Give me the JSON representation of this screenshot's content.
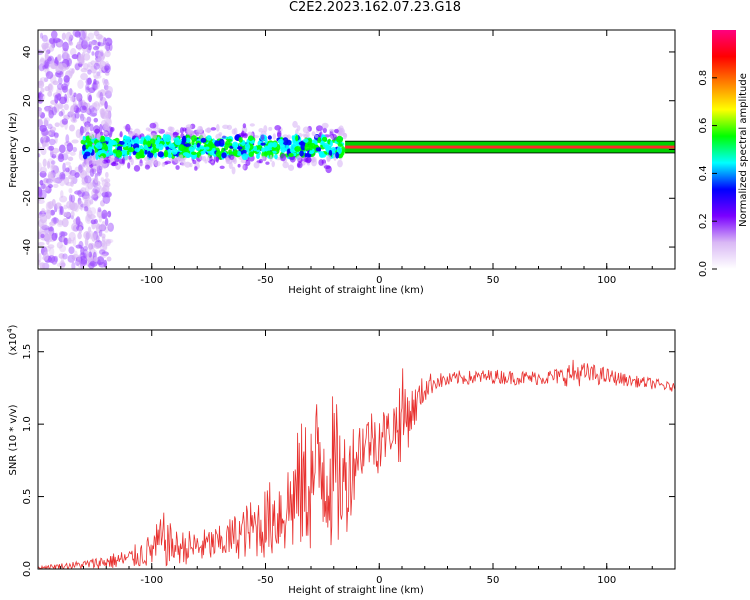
{
  "title": "C2E2.2023.162.07.23.G18",
  "chart_data": [
    {
      "type": "heatmap",
      "xlabel": "Height of straight line (km)",
      "ylabel": "Frequency (Hz)",
      "xlim": [
        -150,
        130
      ],
      "ylim": [
        -49,
        49
      ],
      "x_ticks": [
        -100,
        -50,
        0,
        50,
        100
      ],
      "y_ticks": [
        -40,
        -20,
        0,
        20,
        40
      ],
      "colorbar": {
        "label": "Normalized spectral amplitude",
        "range": [
          0.0,
          1.0
        ],
        "ticks": [
          "0.0",
          "0.2",
          "0.4",
          "0.6",
          "0.8"
        ],
        "colormap": [
          "#ffffff",
          "#d9b8f5",
          "#7a00ff",
          "#0000ff",
          "#00ffff",
          "#00ff00",
          "#ffff00",
          "#ff8000",
          "#ff0000",
          "#ff007f"
        ]
      },
      "band_segments": [
        {
          "x": [
            -150,
            -130
          ],
          "freq_spread": 48,
          "amplitude": 0.15,
          "note": "diffuse purple noise"
        },
        {
          "x": [
            -130,
            -15
          ],
          "freq_center": 1,
          "freq_spread": 10,
          "amplitude": 0.45
        },
        {
          "x": [
            -15,
            130
          ],
          "freq_center": 1,
          "freq_spread": 2,
          "amplitude": 0.85
        }
      ]
    },
    {
      "type": "line",
      "xlabel": "Height of straight line (km)",
      "ylabel": "SNR (10 * v/v)",
      "y_multiplier": "(x10",
      "y_multiplier_exp": "4",
      "xlim": [
        -150,
        130
      ],
      "ylim": [
        0,
        1.65
      ],
      "x_ticks": [
        -100,
        -50,
        0,
        50,
        100
      ],
      "y_ticks": [
        "0.0",
        "0.5",
        "1.0",
        "1.5"
      ],
      "series": [
        {
          "color": "#e8312f",
          "x": [
            -150,
            -140,
            -130,
            -120,
            -110,
            -100,
            -95,
            -90,
            -80,
            -70,
            -60,
            -50,
            -45,
            -40,
            -35,
            -30,
            -25,
            -20,
            -15,
            -10,
            -5,
            0,
            5,
            10,
            15,
            20,
            25,
            30,
            35,
            40,
            50,
            60,
            70,
            80,
            85,
            90,
            100,
            110,
            120,
            130
          ],
          "y": [
            0.01,
            0.02,
            0.03,
            0.05,
            0.07,
            0.13,
            0.2,
            0.15,
            0.15,
            0.18,
            0.25,
            0.32,
            0.38,
            0.43,
            0.55,
            0.6,
            0.75,
            0.65,
            0.58,
            0.8,
            0.9,
            0.9,
            0.95,
            1.05,
            1.1,
            1.25,
            1.3,
            1.3,
            1.32,
            1.32,
            1.33,
            1.32,
            1.32,
            1.33,
            1.35,
            1.35,
            1.33,
            1.3,
            1.28,
            1.25
          ],
          "noise_amplitude": [
            0.01,
            0.02,
            0.03,
            0.05,
            0.07,
            0.12,
            0.2,
            0.12,
            0.12,
            0.12,
            0.18,
            0.25,
            0.3,
            0.35,
            0.45,
            0.5,
            0.6,
            0.55,
            0.4,
            0.25,
            0.2,
            0.25,
            0.15,
            0.35,
            0.15,
            0.1,
            0.06,
            0.05,
            0.05,
            0.05,
            0.05,
            0.05,
            0.05,
            0.06,
            0.1,
            0.08,
            0.06,
            0.04,
            0.04,
            0.03
          ]
        }
      ]
    }
  ]
}
